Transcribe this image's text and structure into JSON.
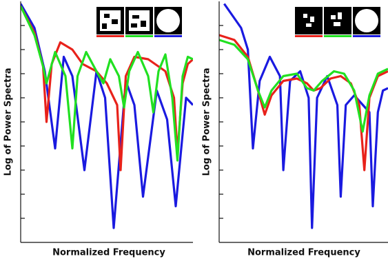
{
  "chart_data": [
    {
      "type": "line",
      "xlabel": "Normalized Frequency",
      "ylabel": "Log of Power Spectra",
      "xlim": [
        0,
        1
      ],
      "ylim": [
        0,
        10
      ],
      "yticks": [
        1,
        2,
        3,
        4,
        5,
        6,
        7,
        8,
        9
      ],
      "series": [
        {
          "color": "#1a1ae0",
          "x": [
            0,
            0.08,
            0.14,
            0.2,
            0.25,
            0.3,
            0.37,
            0.44,
            0.49,
            0.54,
            0.61,
            0.66,
            0.71,
            0.79,
            0.85,
            0.9,
            0.96,
            1.0
          ],
          "values": [
            9.9,
            8.9,
            7.1,
            3.9,
            7.7,
            6.9,
            3.0,
            7.1,
            6.0,
            0.6,
            6.7,
            5.7,
            1.9,
            6.3,
            5.1,
            1.5,
            6.0,
            5.7
          ]
        },
        {
          "color": "#e8221b",
          "x": [
            0,
            0.08,
            0.13,
            0.15,
            0.18,
            0.23,
            0.3,
            0.36,
            0.44,
            0.5,
            0.56,
            0.58,
            0.61,
            0.66,
            0.74,
            0.84,
            0.89,
            0.91,
            0.94,
            0.97,
            1.0
          ],
          "values": [
            9.8,
            8.7,
            7.3,
            5.0,
            7.4,
            8.3,
            8.0,
            7.4,
            7.1,
            6.6,
            5.7,
            3.0,
            6.9,
            7.7,
            7.6,
            7.1,
            6.0,
            3.7,
            6.6,
            7.4,
            7.6
          ]
        },
        {
          "color": "#21e021",
          "x": [
            0,
            0.08,
            0.13,
            0.15,
            0.2,
            0.26,
            0.3,
            0.33,
            0.38,
            0.44,
            0.48,
            0.52,
            0.57,
            0.6,
            0.63,
            0.68,
            0.74,
            0.77,
            0.8,
            0.84,
            0.88,
            0.91,
            0.94,
            0.97,
            1.0
          ],
          "values": [
            9.8,
            8.6,
            7.3,
            6.6,
            7.9,
            6.9,
            3.9,
            6.9,
            7.9,
            7.1,
            6.6,
            7.6,
            6.9,
            5.6,
            7.1,
            7.9,
            6.9,
            5.4,
            7.1,
            7.8,
            6.0,
            3.4,
            6.9,
            7.7,
            7.6
          ]
        }
      ]
    },
    {
      "type": "line",
      "xlabel": "Normalized Frequency",
      "ylabel": "Log of Power Spectra",
      "xlim": [
        0,
        1
      ],
      "ylim": [
        0,
        10
      ],
      "yticks": [
        1,
        2,
        3,
        4,
        5,
        6,
        7,
        8,
        9
      ],
      "series": [
        {
          "color": "#1a1ae0",
          "x": [
            0.03,
            0.13,
            0.17,
            0.2,
            0.24,
            0.3,
            0.36,
            0.38,
            0.42,
            0.48,
            0.53,
            0.55,
            0.58,
            0.64,
            0.7,
            0.72,
            0.75,
            0.8,
            0.89,
            0.91,
            0.94,
            0.97,
            1.0
          ],
          "values": [
            9.9,
            8.9,
            8.0,
            3.9,
            6.7,
            7.7,
            6.9,
            3.0,
            6.7,
            7.1,
            6.0,
            0.6,
            6.0,
            6.9,
            5.7,
            1.9,
            5.7,
            6.1,
            5.4,
            1.5,
            5.4,
            6.3,
            6.4
          ]
        },
        {
          "color": "#e8221b",
          "x": [
            0,
            0.09,
            0.17,
            0.23,
            0.27,
            0.31,
            0.38,
            0.46,
            0.52,
            0.56,
            0.6,
            0.66,
            0.72,
            0.78,
            0.83,
            0.86,
            0.89,
            0.94,
            1.0
          ],
          "values": [
            8.6,
            8.4,
            7.7,
            6.3,
            5.3,
            6.1,
            6.7,
            6.8,
            6.6,
            6.3,
            6.4,
            6.8,
            6.9,
            6.6,
            5.7,
            3.0,
            6.0,
            6.9,
            7.1
          ]
        },
        {
          "color": "#21e021",
          "x": [
            0,
            0.09,
            0.17,
            0.23,
            0.27,
            0.31,
            0.38,
            0.46,
            0.52,
            0.56,
            0.61,
            0.68,
            0.74,
            0.8,
            0.85,
            0.89,
            0.94,
            1.0
          ],
          "values": [
            8.4,
            8.2,
            7.6,
            6.3,
            5.6,
            6.3,
            6.9,
            7.0,
            6.4,
            6.3,
            6.7,
            7.1,
            7.0,
            6.3,
            4.6,
            6.1,
            7.0,
            7.2
          ]
        }
      ]
    }
  ]
}
